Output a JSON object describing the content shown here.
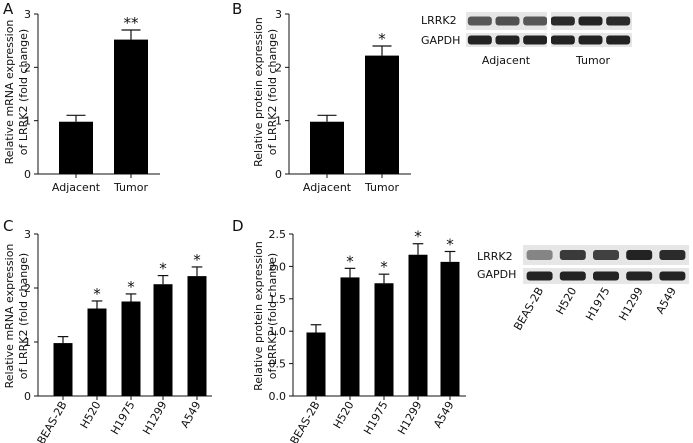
{
  "chart_data": [
    {
      "panel": "A",
      "type": "bar",
      "ylabel": [
        "Relative mRNA expression",
        "of LRRK2 (fold change)"
      ],
      "categories": [
        "Adjacent",
        "Tumor"
      ],
      "values": [
        0.98,
        2.52
      ],
      "errors": [
        0.12,
        0.18
      ],
      "significance": [
        "",
        "**"
      ],
      "ylim": [
        0,
        3
      ],
      "yticks": [
        0,
        1,
        2,
        3
      ]
    },
    {
      "panel": "B",
      "type": "bar",
      "ylabel": [
        "Relative protein expression",
        "of LRRK2 (fold change)"
      ],
      "categories": [
        "Adjacent",
        "Tumor"
      ],
      "values": [
        0.98,
        2.22
      ],
      "errors": [
        0.12,
        0.18
      ],
      "significance": [
        "",
        "*"
      ],
      "ylim": [
        0,
        3
      ],
      "yticks": [
        0,
        1,
        2,
        3
      ]
    },
    {
      "panel": "C",
      "type": "bar",
      "ylabel": [
        "Relative mRNA expression",
        "of LRRK2 (fold change)"
      ],
      "categories": [
        "BEAS-2B",
        "H520",
        "H1975",
        "H1299",
        "A549"
      ],
      "values": [
        0.98,
        1.62,
        1.75,
        2.07,
        2.22
      ],
      "errors": [
        0.12,
        0.14,
        0.14,
        0.16,
        0.17
      ],
      "significance": [
        "",
        "*",
        "*",
        "*",
        "*"
      ],
      "ylim": [
        0,
        3
      ],
      "yticks": [
        0,
        1,
        2,
        3
      ]
    },
    {
      "panel": "D",
      "type": "bar",
      "ylabel": [
        "Relative protein expression",
        "of LRRK2 (fold change)"
      ],
      "categories": [
        "BEAS-2B",
        "H520",
        "H1975",
        "H1299",
        "A549"
      ],
      "values": [
        0.98,
        1.83,
        1.74,
        2.18,
        2.07
      ],
      "errors": [
        0.12,
        0.14,
        0.14,
        0.17,
        0.16
      ],
      "significance": [
        "",
        "*",
        "*",
        "*",
        "*"
      ],
      "ylim": [
        0,
        2.5
      ],
      "yticks": [
        0.0,
        0.5,
        1.0,
        1.5,
        2.0,
        2.5
      ],
      "ytick_labels": [
        "0.0",
        "0.5",
        "1.0",
        "1.5",
        "2.0",
        "2.5"
      ]
    }
  ],
  "blots": {
    "top": {
      "rows": [
        "LRRK2",
        "GAPDH"
      ],
      "groups": [
        "Adjacent",
        "Tumor"
      ],
      "lrrk2_intensity": [
        0.55,
        0.6,
        0.55,
        0.85,
        0.9,
        0.85
      ],
      "gapdh_intensity": [
        0.9,
        0.9,
        0.9,
        0.9,
        0.9,
        0.9
      ]
    },
    "bottom": {
      "rows": [
        "LRRK2",
        "GAPDH"
      ],
      "lanes": [
        "BEAS-2B",
        "H520",
        "H1975",
        "H1299",
        "A549"
      ],
      "lrrk2_intensity": [
        0.25,
        0.75,
        0.7,
        0.9,
        0.85
      ],
      "gapdh_intensity": [
        0.9,
        0.9,
        0.9,
        0.9,
        0.9
      ]
    }
  }
}
